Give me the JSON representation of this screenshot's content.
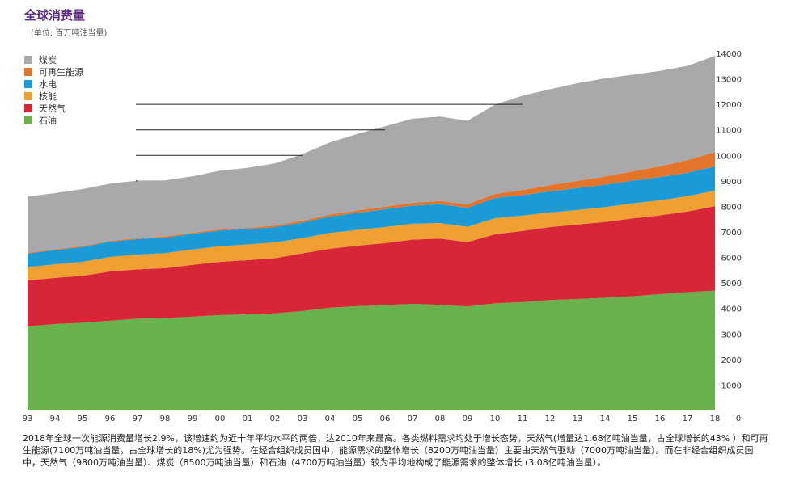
{
  "title": "全球消费量",
  "subtitle": "(单位: 百万吨油当量)",
  "caption": "2018年全球一次能源消费量增长2.9%，该增速约为近十年平均水平的两倍，达2010年来最高。各类燃料需求均处于增长态势，天然气(增量达1.68亿吨油当量，占全球增长的43% ）和可再生能源(7100万吨油当量，占全球增长的18%)尤为强势。在经合组织成员国中，能源需求的整体增长（8200万吨油当量）主要由天然气驱动（7000万吨油当量）。而在非经合组织成员国中，天然气（9800万吨油当量）、煤炭（8500万吨油当量）和石油（4700万吨油当量）较为平均地构成了能源需求的整体增长 (3.08亿吨油当量）。",
  "chart_data": {
    "type": "area",
    "stacked": true,
    "x": [
      "93",
      "94",
      "95",
      "96",
      "97",
      "98",
      "99",
      "00",
      "01",
      "02",
      "03",
      "04",
      "05",
      "06",
      "07",
      "08",
      "09",
      "10",
      "11",
      "12",
      "13",
      "14",
      "15",
      "16",
      "17",
      "18"
    ],
    "y_ticks": [
      0,
      1000,
      2000,
      3000,
      4000,
      5000,
      6000,
      7000,
      8000,
      9000,
      10000,
      11000,
      12000,
      13000,
      14000
    ],
    "ylim": [
      0,
      14000
    ],
    "y_axis_side": "right",
    "legend_position": "top-left",
    "series": [
      {
        "name": "石油",
        "color": "#6ab04c",
        "values": [
          3300,
          3390,
          3440,
          3520,
          3600,
          3620,
          3680,
          3740,
          3770,
          3810,
          3900,
          4030,
          4090,
          4130,
          4180,
          4140,
          4080,
          4200,
          4250,
          4330,
          4370,
          4420,
          4480,
          4560,
          4640,
          4700
        ]
      },
      {
        "name": "天然气",
        "color": "#d72638",
        "values": [
          1800,
          1810,
          1840,
          1930,
          1930,
          1960,
          2030,
          2090,
          2120,
          2160,
          2260,
          2310,
          2370,
          2430,
          2520,
          2600,
          2520,
          2710,
          2790,
          2860,
          2920,
          2970,
          3050,
          3090,
          3160,
          3310
        ]
      },
      {
        "name": "核能",
        "color": "#f0a030",
        "values": [
          520,
          530,
          550,
          570,
          580,
          590,
          600,
          610,
          620,
          620,
          600,
          620,
          620,
          630,
          620,
          610,
          600,
          630,
          600,
          570,
          570,
          580,
          590,
          590,
          600,
          610
        ]
      },
      {
        "name": "水电",
        "color": "#1a9bd7",
        "values": [
          530,
          560,
          580,
          600,
          610,
          610,
          620,
          610,
          600,
          600,
          610,
          640,
          670,
          700,
          710,
          740,
          740,
          790,
          800,
          830,
          860,
          880,
          890,
          910,
          920,
          950
        ]
      },
      {
        "name": "可再生能源",
        "color": "#e5742b",
        "values": [
          30,
          30,
          30,
          30,
          30,
          40,
          40,
          50,
          50,
          60,
          70,
          80,
          90,
          100,
          110,
          120,
          140,
          160,
          200,
          240,
          280,
          320,
          360,
          420,
          490,
          560
        ]
      },
      {
        "name": "煤炭",
        "color": "#a9a8ab",
        "values": [
          2200,
          2200,
          2240,
          2240,
          2260,
          2200,
          2210,
          2300,
          2350,
          2440,
          2610,
          2830,
          3000,
          3150,
          3300,
          3310,
          3280,
          3500,
          3700,
          3760,
          3830,
          3850,
          3790,
          3740,
          3700,
          3770
        ]
      }
    ]
  }
}
